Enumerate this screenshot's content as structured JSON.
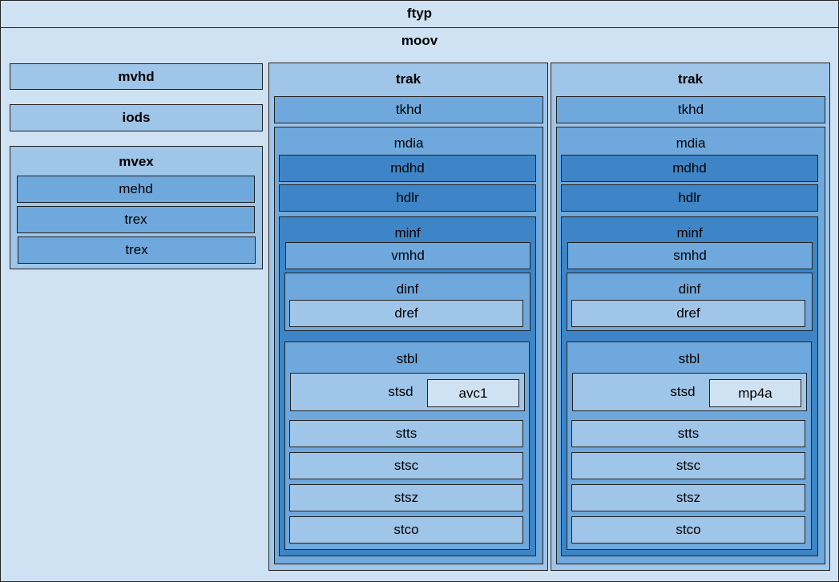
{
  "ftyp": "ftyp",
  "moov": {
    "label": "moov",
    "mvhd": "mvhd",
    "iods": "iods",
    "mvex": {
      "label": "mvex",
      "children": [
        "mehd",
        "trex",
        "trex"
      ]
    },
    "traks": [
      {
        "label": "trak",
        "tkhd": "tkhd",
        "mdia": {
          "label": "mdia",
          "mdhd": "mdhd",
          "hdlr": "hdlr",
          "minf": {
            "label": "minf",
            "header": "vmhd",
            "dinf": {
              "label": "dinf",
              "dref": "dref"
            },
            "stbl": {
              "label": "stbl",
              "stsd": {
                "label": "stsd",
                "entry": "avc1"
              },
              "stts": "stts",
              "stsc": "stsc",
              "stsz": "stsz",
              "stco": "stco"
            }
          }
        }
      },
      {
        "label": "trak",
        "tkhd": "tkhd",
        "mdia": {
          "label": "mdia",
          "mdhd": "mdhd",
          "hdlr": "hdlr",
          "minf": {
            "label": "minf",
            "header": "smhd",
            "dinf": {
              "label": "dinf",
              "dref": "dref"
            },
            "stbl": {
              "label": "stbl",
              "stsd": {
                "label": "stsd",
                "entry": "mp4a"
              },
              "stts": "stts",
              "stsc": "stsc",
              "stsz": "stsz",
              "stco": "stco"
            }
          }
        }
      }
    ]
  }
}
